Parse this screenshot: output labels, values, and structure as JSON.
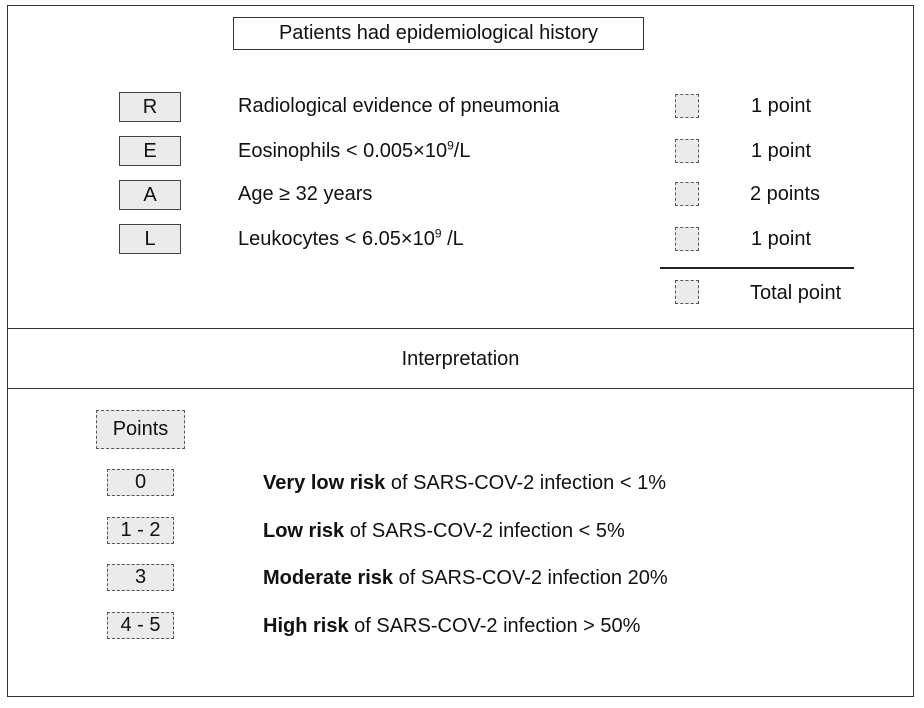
{
  "title": "Patients had epidemiological history",
  "criteria": [
    {
      "letter": "R",
      "text": "Radiological evidence of pneumonia",
      "points": "1 point"
    },
    {
      "letter": "E",
      "text_before": "Eosinophils < 0.005",
      "times": "×",
      "base": "10",
      "exp": "9",
      "text_after": "/L",
      "points": "1 point"
    },
    {
      "letter": "A",
      "text": "Age ≥ 32 years",
      "points": "2 points"
    },
    {
      "letter": "L",
      "text_before": "Leukocytes < 6.05",
      "times": "×",
      "base": "10",
      "exp": "9",
      "text_after": " /L",
      "points": "1 point"
    }
  ],
  "total_label": "Total point",
  "interpretation_label": "Interpretation",
  "points_header": "Points",
  "risk_levels": [
    {
      "points": "0",
      "bold": "Very low risk",
      "rest": " of SARS-COV-2 infection < 1%"
    },
    {
      "points": "1 - 2",
      "bold": "Low risk",
      "rest": " of SARS-COV-2 infection < 5%"
    },
    {
      "points": "3",
      "bold": "Moderate risk",
      "rest": " of SARS-COV-2 infection 20%"
    },
    {
      "points": "4 - 5",
      "bold": "High risk",
      "rest": " of SARS-COV-2 infection > 50%"
    }
  ]
}
